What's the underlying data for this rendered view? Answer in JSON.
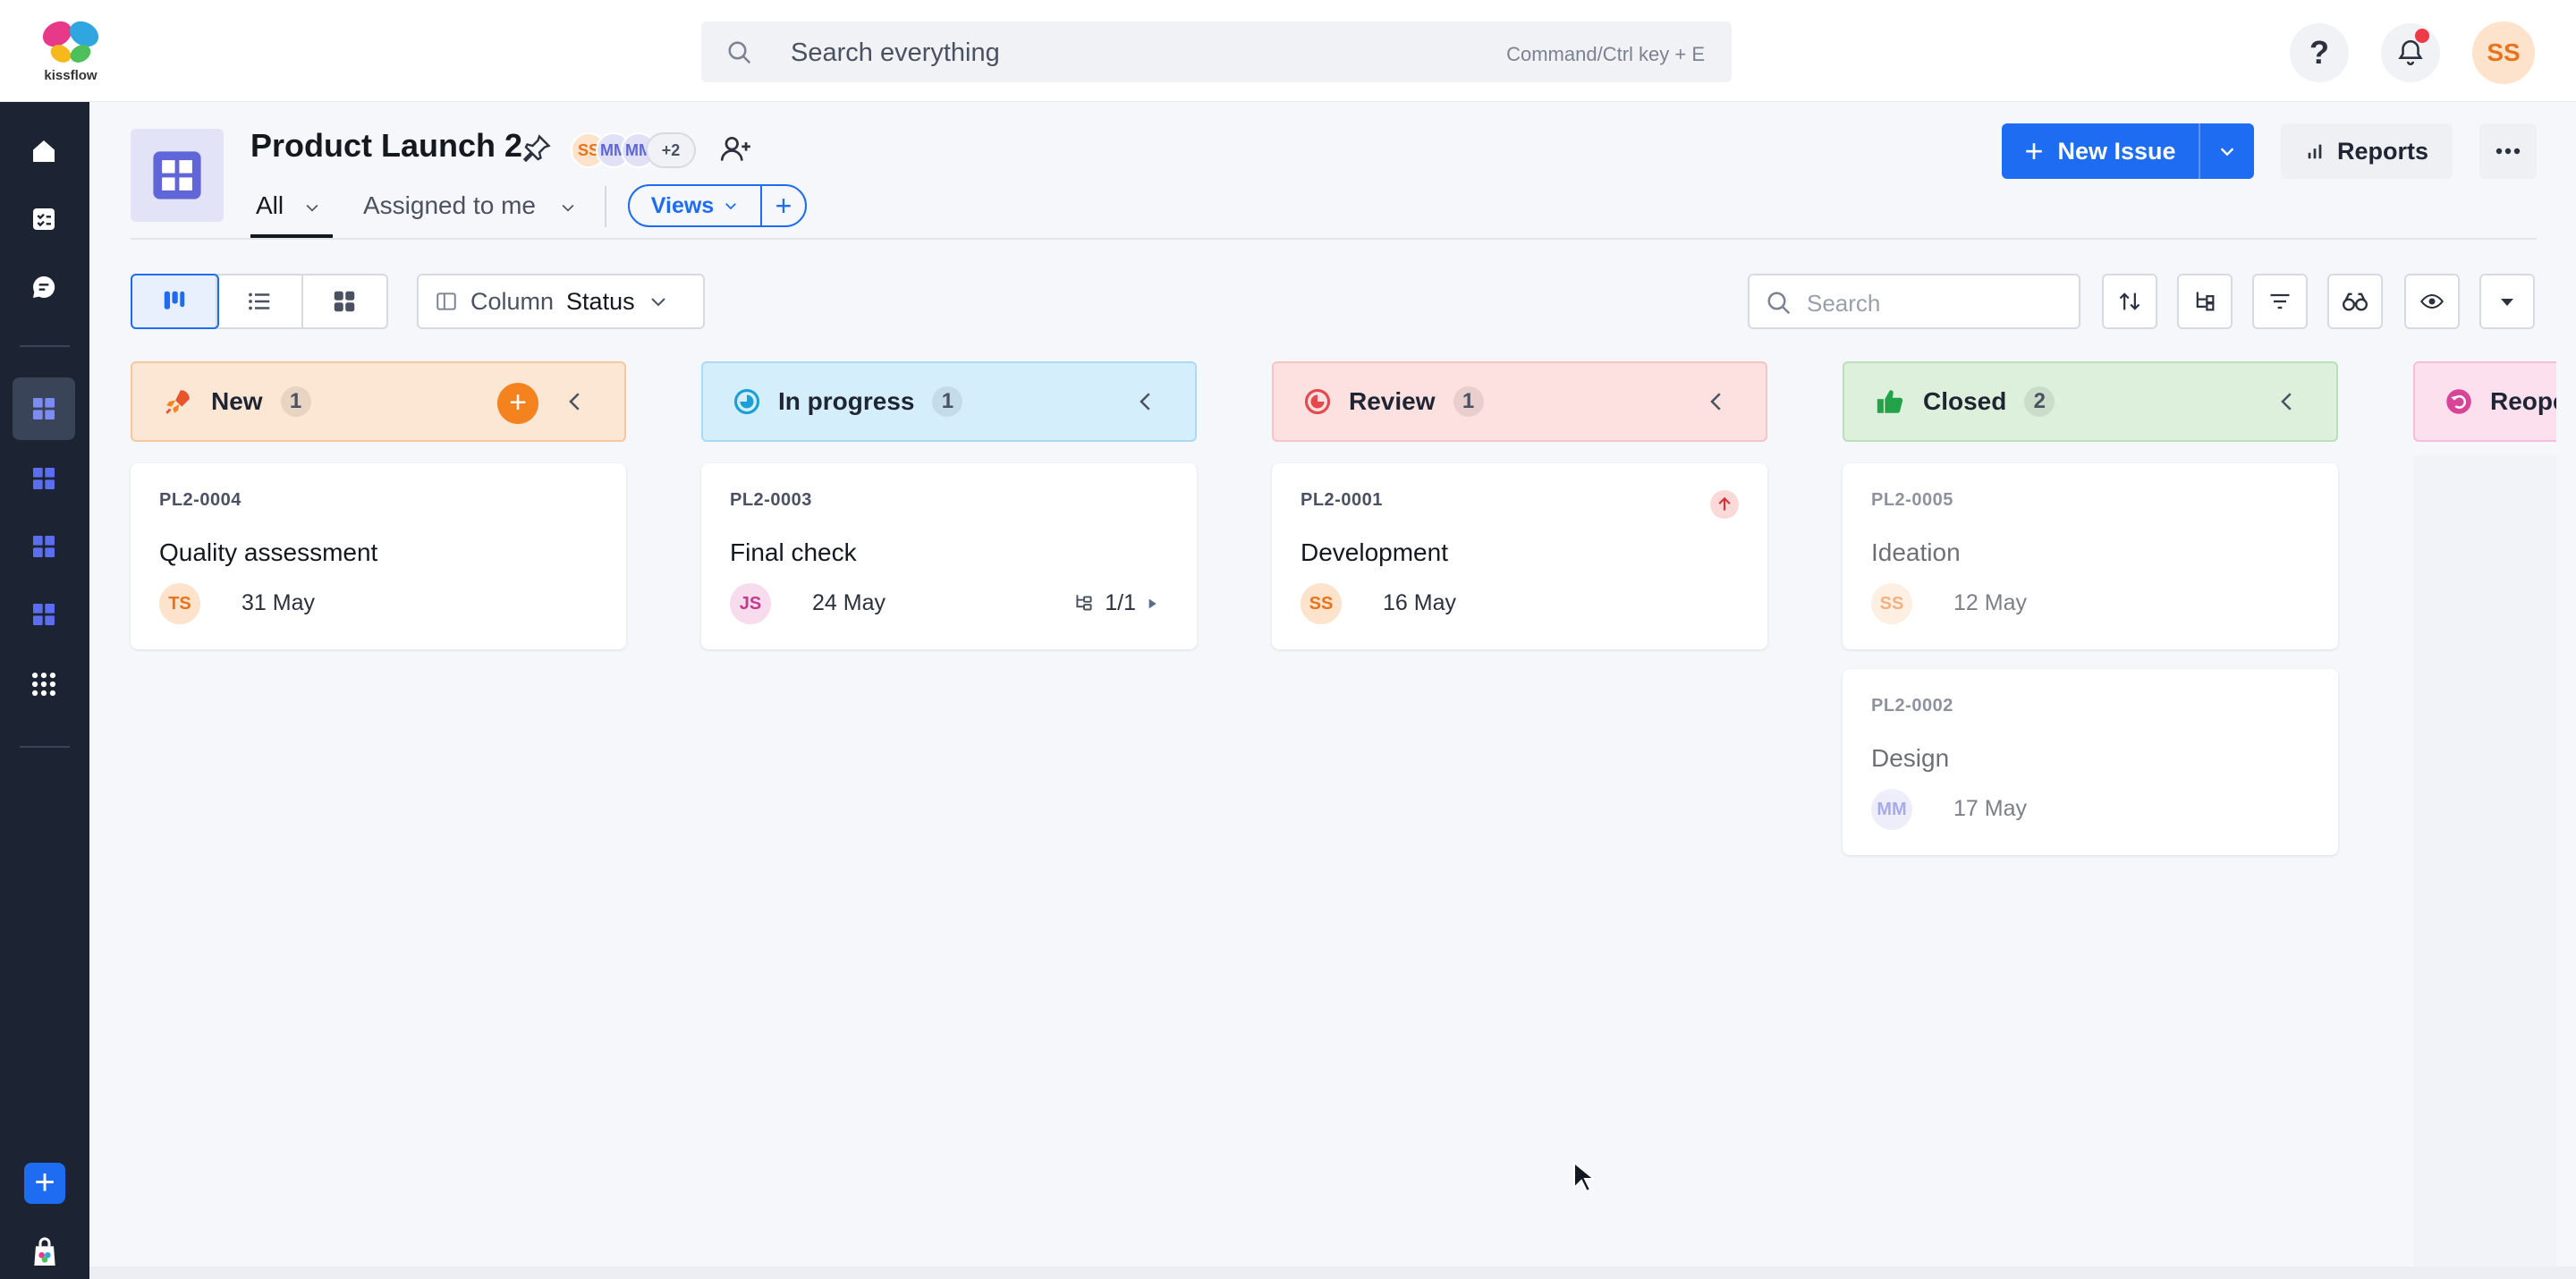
{
  "brand": {
    "name": "kissflow"
  },
  "search": {
    "placeholder": "Search everything",
    "hint": "Command/Ctrl key + E"
  },
  "user": {
    "initials": "SS"
  },
  "project": {
    "title": "Product Launch 2",
    "members": [
      "SS",
      "MM",
      "MM"
    ],
    "extra_members": "+2",
    "tabs": [
      {
        "label": "All"
      },
      {
        "label": "Assigned to me"
      }
    ],
    "views_label": "Views",
    "new_issue_label": "New Issue",
    "reports_label": "Reports"
  },
  "toolbar": {
    "column_label": "Column",
    "column_value": "Status",
    "search_placeholder": "Search"
  },
  "colors": {
    "accent": "#1d6cf2",
    "rail": "#1c2434"
  },
  "board": {
    "columns": [
      {
        "name": "New",
        "count": "1",
        "bg": "#fce6d4",
        "border": "#f6c8a2",
        "icon": "rocket-icon",
        "cards": [
          {
            "key": "PL2-0004",
            "title": "Quality assessment",
            "assignee": "TS",
            "date": "31 May"
          }
        ]
      },
      {
        "name": "In progress",
        "count": "1",
        "bg": "#d5eefc",
        "border": "#a9dbf6",
        "icon": "progress-icon",
        "cards": [
          {
            "key": "PL2-0003",
            "title": "Final check",
            "assignee": "JS",
            "date": "24 May",
            "subtasks": "1/1"
          }
        ]
      },
      {
        "name": "Review",
        "count": "1",
        "bg": "#fde0e0",
        "border": "#f6c4c4",
        "icon": "review-icon",
        "cards": [
          {
            "key": "PL2-0001",
            "title": "Development",
            "assignee": "SS",
            "date": "16 May",
            "priority": "high"
          }
        ]
      },
      {
        "name": "Closed",
        "count": "2",
        "bg": "#dcf0dc",
        "border": "#b9e0b9",
        "icon": "thumbs-up-icon",
        "cards": [
          {
            "key": "PL2-0005",
            "title": "Ideation",
            "assignee": "SS",
            "date": "12 May"
          },
          {
            "key": "PL2-0002",
            "title": "Design",
            "assignee": "MM",
            "date": "17 May"
          }
        ]
      },
      {
        "name": "Reope",
        "bg": "#fce0ee",
        "border": "#f5bfdc",
        "icon": "reopen-icon"
      }
    ]
  }
}
